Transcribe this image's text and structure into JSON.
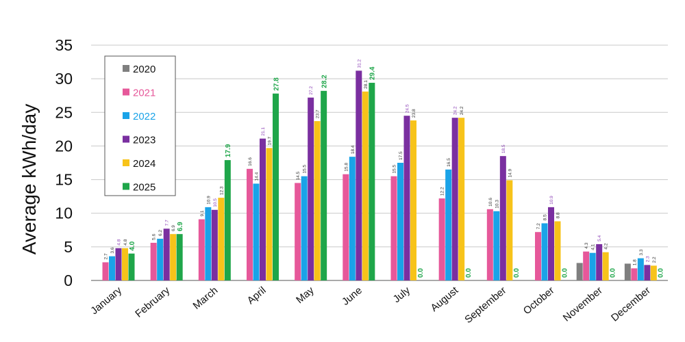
{
  "chart_data": {
    "type": "bar",
    "ylabel": "Average kWh/day",
    "xlabel": "",
    "ylim": [
      0,
      35
    ],
    "yticks": [
      "0",
      "5",
      "10",
      "15",
      "20",
      "25",
      "30",
      "35"
    ],
    "grid": "horizontal",
    "legend_position": "top-left",
    "categories": [
      "January",
      "February",
      "March",
      "April",
      "May",
      "June",
      "July",
      "August",
      "September",
      "October",
      "November",
      "December"
    ],
    "series": [
      {
        "name": "2020",
        "color": "#7f7f7f",
        "label_color": "#333333",
        "values": [
          null,
          null,
          null,
          null,
          null,
          null,
          null,
          null,
          null,
          null,
          2.6,
          2.5
        ],
        "labels": [
          "",
          "",
          "",
          "",
          "",
          "",
          "",
          "",
          "",
          "",
          "",
          ""
        ]
      },
      {
        "name": "2021",
        "color": "#e6589a",
        "label_color": "#333333",
        "values": [
          2.7,
          5.6,
          9.1,
          16.6,
          14.5,
          15.8,
          15.5,
          12.2,
          10.6,
          7.2,
          4.3,
          1.8
        ],
        "labels": [
          "2.7",
          "5.6",
          "9.1",
          "16.6",
          "14.5",
          "15.8",
          "15.5",
          "12.2",
          "10.6",
          "7.2",
          "4.3",
          "1.8"
        ]
      },
      {
        "name": "2022",
        "color": "#1aa3e8",
        "label_color": "#333333",
        "values": [
          3.6,
          6.2,
          10.9,
          14.4,
          15.5,
          18.4,
          17.5,
          16.5,
          10.3,
          8.5,
          4.1,
          3.3
        ],
        "labels": [
          "3.6",
          "6.2",
          "10.9",
          "14.4",
          "15.5",
          "18.4",
          "17.5",
          "16.5",
          "10.3",
          "8.5",
          "4.1",
          "3.3"
        ]
      },
      {
        "name": "2023",
        "color": "#7a2fa0",
        "label_color": "#8a3fb5",
        "values": [
          4.8,
          7.7,
          10.5,
          21.1,
          27.2,
          31.2,
          24.5,
          24.2,
          18.5,
          10.9,
          5.4,
          2.3
        ],
        "labels": [
          "4.8",
          "7.7",
          "10.5",
          "21.1",
          "27.2",
          "31.2",
          "24.5",
          "24.2",
          "18.5",
          "10.9",
          "5.4",
          "2.3"
        ]
      },
      {
        "name": "2024",
        "color": "#f7c31a",
        "label_color": "#333333",
        "values": [
          4.8,
          6.9,
          12.3,
          19.7,
          23.7,
          28.1,
          23.8,
          24.2,
          14.9,
          8.8,
          4.2,
          2.2
        ],
        "labels": [
          "4.8",
          "6.9",
          "12.3",
          "19.7",
          "23.7",
          "28.1",
          "23.8",
          "24.2",
          "14.9",
          "8.8",
          "4.2",
          "2.2"
        ]
      },
      {
        "name": "2025",
        "color": "#1fa64a",
        "label_color": "#1fa64a",
        "values": [
          4.0,
          6.9,
          17.9,
          27.8,
          28.2,
          29.4,
          0.0,
          0.0,
          0.0,
          0.0,
          0.0,
          0.0
        ],
        "labels": [
          "4.0",
          "6.9",
          "17.9",
          "27.8",
          "28.2",
          "29.4",
          "0.0",
          "0.0",
          "0.0",
          "0.0",
          "0.0",
          "0.0"
        ]
      }
    ]
  }
}
